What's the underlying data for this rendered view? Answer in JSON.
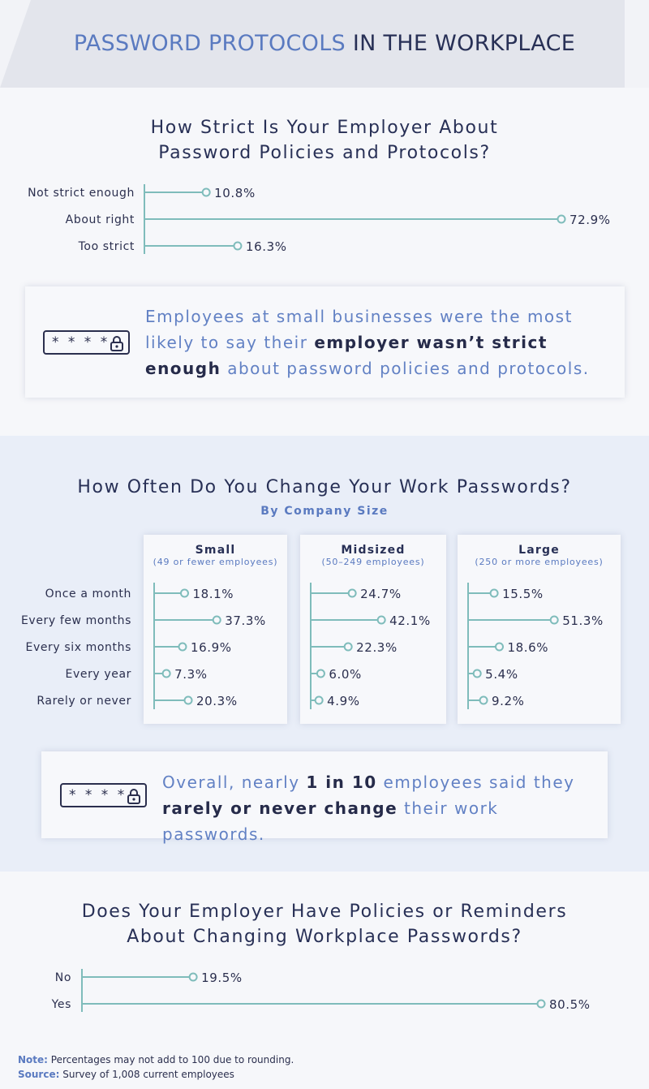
{
  "header": {
    "title_highlight": "PASSWORD PROTOCOLS",
    "title_rest": " IN THE WORKPLACE"
  },
  "colors": {
    "accent_blue": "#5a7ac0",
    "navy": "#283056",
    "teal_line": "#7fbcbb"
  },
  "icons": {
    "lock": "password-lock-icon"
  },
  "strictness": {
    "title_line1": "How Strict Is Your Employer About",
    "title_line2": "Password Policies and Protocols?"
  },
  "callout1": {
    "part1": "Employees at small businesses were the most likely to say their ",
    "bold": "employer wasn’t strict enough",
    "part2": " about password policies and protocols."
  },
  "frequency": {
    "title": "How Often Do You Change Your Work Passwords?",
    "subtitle": "By Company Size"
  },
  "callout2": {
    "part1": "Overall, nearly ",
    "bold1": "1 in 10",
    "part2": " employees said they ",
    "bold2": "rarely or never change",
    "part3": " their work passwords."
  },
  "reminders": {
    "title_line1": "Does Your Employer Have Policies or Reminders",
    "title_line2": "About Changing Workplace Passwords?"
  },
  "notes": {
    "note_label": "Note:",
    "note_text": " Percentages may not add to 100 due to rounding.",
    "source_label": "Source:",
    "source_text": " Survey of 1,008 current employees"
  },
  "chart_data": [
    {
      "type": "bar",
      "title": "How Strict Is Your Employer About Password Policies and Protocols?",
      "categories": [
        "Not strict enough",
        "About right",
        "Too strict"
      ],
      "values": [
        10.8,
        72.9,
        16.3
      ],
      "labels": [
        "10.8%",
        "72.9%",
        "16.3%"
      ],
      "ylim": [
        0,
        72.9
      ],
      "orientation": "horizontal"
    },
    {
      "type": "bar",
      "title": "How Often Do You Change Your Work Passwords?",
      "subtitle": "By Company Size",
      "categories": [
        "Once a month",
        "Every few months",
        "Every six months",
        "Every year",
        "Rarely or never"
      ],
      "series": [
        {
          "name": "Small",
          "note": "(49 or fewer employees)",
          "values": [
            18.1,
            37.3,
            16.9,
            7.3,
            20.3
          ],
          "labels": [
            "18.1%",
            "37.3%",
            "16.9%",
            "7.3%",
            "20.3%"
          ]
        },
        {
          "name": "Midsized",
          "note": "(50–249 employees)",
          "values": [
            24.7,
            42.1,
            22.3,
            6.0,
            4.9
          ],
          "labels": [
            "24.7%",
            "42.1%",
            "22.3%",
            "6.0%",
            "4.9%"
          ]
        },
        {
          "name": "Large",
          "note": "(250 or more employees)",
          "values": [
            15.5,
            51.3,
            18.6,
            5.4,
            9.2
          ],
          "labels": [
            "15.5%",
            "51.3%",
            "18.6%",
            "5.4%",
            "9.2%"
          ]
        }
      ],
      "orientation": "horizontal"
    },
    {
      "type": "bar",
      "title": "Does Your Employer Have Policies or Reminders About Changing Workplace Passwords?",
      "categories": [
        "No",
        "Yes"
      ],
      "values": [
        19.5,
        80.5
      ],
      "labels": [
        "19.5%",
        "80.5%"
      ],
      "ylim": [
        0,
        80.5
      ],
      "orientation": "horizontal"
    }
  ]
}
